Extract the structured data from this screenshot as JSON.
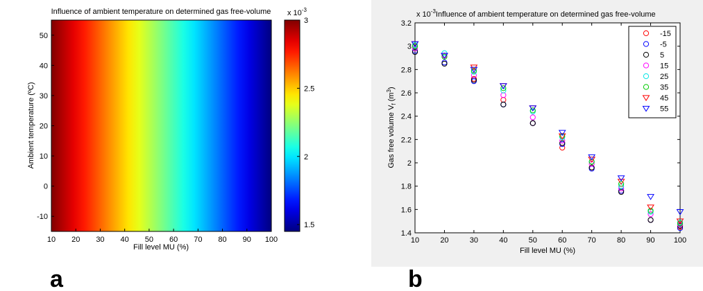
{
  "panels": {
    "a_label": "a",
    "b_label": "b"
  },
  "chart_data": [
    {
      "type": "heatmap",
      "title": "Influence of ambient temperature on determined gas free-volume",
      "xlabel": "Fill level MU (%)",
      "ylabel": "Ambient temperature (ºC)",
      "xlim": [
        10,
        100
      ],
      "ylim": [
        -15,
        55
      ],
      "xticks": [
        10,
        20,
        30,
        40,
        50,
        60,
        70,
        80,
        90,
        100
      ],
      "yticks": [
        -10,
        0,
        10,
        20,
        30,
        40,
        50
      ],
      "colormap": "jet",
      "colorbar": {
        "range": [
          1.45,
          3.0
        ],
        "ticks": [
          1.5,
          2,
          2.5,
          3
        ],
        "multiplier": "x 10",
        "exponent": "-3"
      },
      "grid": false
    },
    {
      "type": "scatter",
      "title": "Influence of ambient temperature on determined gas free-volume",
      "multiplier": "x 10",
      "exponent": "-3",
      "xlabel": "Fill level MU (%)",
      "ylabel_main": "Gas free volume V",
      "ylabel_sub": "f",
      "ylabel_unit": " (m",
      "ylabel_sup": "3",
      "ylabel_close": ")",
      "xlim": [
        10,
        100
      ],
      "ylim": [
        1.4,
        3.2
      ],
      "xticks": [
        10,
        20,
        30,
        40,
        50,
        60,
        70,
        80,
        90,
        100
      ],
      "yticks": [
        1.4,
        1.6,
        1.8,
        2,
        2.2,
        2.4,
        2.6,
        2.8,
        3,
        3.2
      ],
      "legend_position": "top-right",
      "grid": false,
      "x": [
        10,
        20,
        30,
        40,
        50,
        60,
        70,
        80,
        90,
        100
      ],
      "series": [
        {
          "name": "-15",
          "marker": "circle",
          "color": "#ff0000",
          "values": [
            3.0,
            2.92,
            2.72,
            2.54,
            2.34,
            2.13,
            1.96,
            1.76,
            1.51,
            1.45
          ]
        },
        {
          "name": "-5",
          "marker": "circle",
          "color": "#0000ff",
          "values": [
            2.96,
            2.86,
            2.7,
            2.5,
            2.34,
            2.16,
            1.95,
            1.76,
            1.51,
            1.44
          ]
        },
        {
          "name": "5",
          "marker": "circle",
          "color": "#000000",
          "values": [
            2.95,
            2.85,
            2.71,
            2.5,
            2.34,
            2.17,
            1.96,
            1.75,
            1.51,
            1.46
          ]
        },
        {
          "name": "15",
          "marker": "circle",
          "color": "#ff00ff",
          "values": [
            2.98,
            2.92,
            2.75,
            2.58,
            2.39,
            2.19,
            1.99,
            1.78,
            1.56,
            1.47
          ]
        },
        {
          "name": "25",
          "marker": "circle",
          "color": "#00e5e5",
          "values": [
            3.01,
            2.94,
            2.78,
            2.62,
            2.44,
            2.22,
            2.01,
            1.8,
            1.58,
            1.49
          ]
        },
        {
          "name": "35",
          "marker": "circle",
          "color": "#00cc00",
          "values": [
            3.0,
            2.91,
            2.79,
            2.64,
            2.45,
            2.23,
            2.01,
            1.82,
            1.59,
            1.48
          ]
        },
        {
          "name": "45",
          "marker": "triangle-down",
          "color": "#ff0000",
          "values": [
            3.02,
            2.92,
            2.82,
            2.66,
            2.47,
            2.23,
            2.03,
            1.84,
            1.62,
            1.5
          ]
        },
        {
          "name": "55",
          "marker": "triangle-down",
          "color": "#0000ff",
          "values": [
            3.02,
            2.92,
            2.8,
            2.66,
            2.47,
            2.26,
            2.05,
            1.87,
            1.71,
            1.58
          ]
        }
      ]
    }
  ]
}
